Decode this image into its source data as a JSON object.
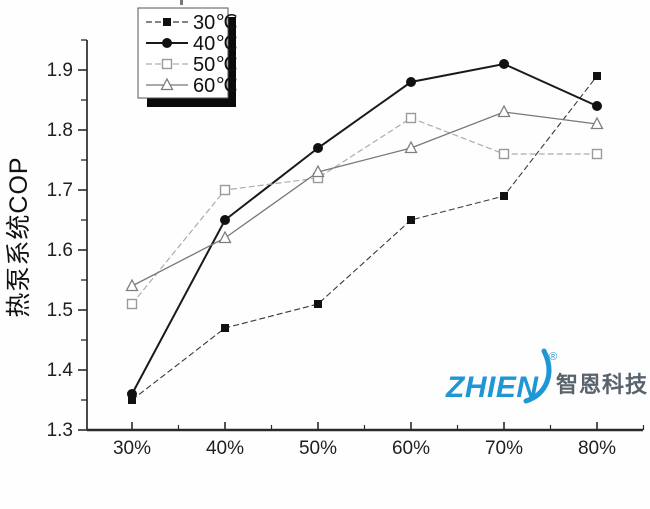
{
  "chart_data": {
    "type": "line",
    "title": "",
    "xlabel": "",
    "ylabel": "热泵系统COP",
    "categories": [
      "30%",
      "40%",
      "50%",
      "60%",
      "70%",
      "80%"
    ],
    "series": [
      {
        "name": "30℃",
        "marker": "filled-square",
        "line": "dashed",
        "color": "#3a3a3a",
        "width": 1.1,
        "values": [
          1.35,
          1.47,
          1.51,
          1.65,
          1.69,
          1.89
        ]
      },
      {
        "name": "40℃",
        "marker": "filled-circle",
        "line": "solid",
        "color": "#1a1a1a",
        "width": 2,
        "values": [
          1.36,
          1.65,
          1.77,
          1.88,
          1.91,
          1.84
        ]
      },
      {
        "name": "50℃",
        "marker": "open-square",
        "line": "dashed",
        "color": "#adadad",
        "width": 1.2,
        "values": [
          1.51,
          1.7,
          1.72,
          1.82,
          1.76,
          1.76
        ]
      },
      {
        "name": "60℃",
        "marker": "open-triangle",
        "line": "solid",
        "color": "#787878",
        "width": 1.3,
        "values": [
          1.54,
          1.62,
          1.73,
          1.77,
          1.83,
          1.81
        ]
      }
    ],
    "y_ticks": [
      1.3,
      1.4,
      1.5,
      1.6,
      1.7,
      1.8,
      1.9
    ],
    "ylim": [
      1.3,
      1.95
    ],
    "grid": false,
    "legend_position": "top-left"
  },
  "watermark": {
    "brand": "ZHIEN",
    "registered": "®",
    "cn_text": "智恩科技",
    "brand_color": "#1e97d4",
    "cn_color": "#59636d"
  },
  "axis_color": "#2a2a2a",
  "tick_label_color": "#1f1f1f"
}
